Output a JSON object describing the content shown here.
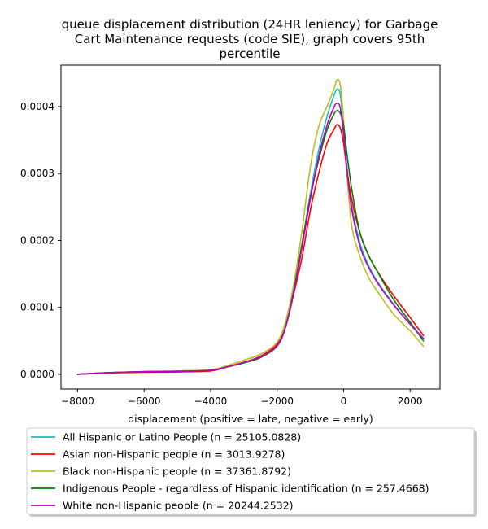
{
  "chart_data": {
    "type": "line",
    "title_lines": [
      "queue displacement distribution (24HR leniency) for Garbage",
      "Cart Maintenance  requests (code SIE), graph covers 95th",
      "percentile"
    ],
    "xlabel": "displacement (positive = late, negative = early)",
    "ylabel": "",
    "xlim": [
      -8500,
      2900
    ],
    "ylim": [
      -2.2e-05,
      0.000462
    ],
    "x_ticks": [
      -8000,
      -6000,
      -4000,
      -2000,
      0,
      2000
    ],
    "x_tick_labels": [
      "−8000",
      "−6000",
      "−4000",
      "−2000",
      "0",
      "2000"
    ],
    "y_ticks": [
      0,
      0.0001,
      0.0002,
      0.0003,
      0.0004
    ],
    "y_tick_labels": [
      "0.0000",
      "0.0001",
      "0.0002",
      "0.0003",
      "0.0004"
    ],
    "grid": false,
    "legend_position": "below",
    "x": [
      -8000,
      -7000,
      -6000,
      -5000,
      -4000,
      -3500,
      -3000,
      -2500,
      -2000,
      -1750,
      -1500,
      -1250,
      -1000,
      -750,
      -500,
      -300,
      -200,
      -100,
      0,
      100,
      250,
      500,
      750,
      1000,
      1500,
      2000,
      2400
    ],
    "series": [
      {
        "name": "All Hispanic or Latino People (n = 25105.0828)",
        "color": "#17becf",
        "values": [
          0,
          2.5e-06,
          4e-06,
          4.5e-06,
          6e-06,
          1.1e-05,
          1.8e-05,
          2.7e-05,
          4.5e-05,
          7.2e-05,
          0.000125,
          0.000195,
          0.00027,
          0.000335,
          0.000385,
          0.000415,
          0.000426,
          0.000418,
          0.00037,
          0.00031,
          0.00025,
          0.000195,
          0.000163,
          0.00014,
          0.000105,
          7.5e-05,
          5.3e-05
        ]
      },
      {
        "name": "Asian non-Hispanic people (n = 3013.9278)",
        "color": "#ff0000",
        "values": [
          0,
          2e-06,
          3e-06,
          3.5e-06,
          5e-06,
          1.1e-05,
          1.8e-05,
          2.7e-05,
          4.5e-05,
          7e-05,
          0.00012,
          0.000175,
          0.000245,
          0.0003,
          0.000345,
          0.000365,
          0.000373,
          0.000368,
          0.000345,
          0.000305,
          0.00026,
          0.00021,
          0.000178,
          0.000155,
          0.000118,
          8.5e-05,
          5.8e-05
        ]
      },
      {
        "name": "Black non-Hispanic people (n = 37361.8792)",
        "color": "#bcbd22",
        "values": [
          0,
          2.5e-06,
          4e-06,
          5e-06,
          7e-06,
          1.3e-05,
          2.1e-05,
          3e-05,
          4.8e-05,
          7.8e-05,
          0.000135,
          0.000215,
          0.00031,
          0.00037,
          0.0004,
          0.000425,
          0.00044,
          0.000432,
          0.00038,
          0.0003,
          0.00022,
          0.000175,
          0.000145,
          0.000125,
          9e-05,
          6.5e-05,
          4.2e-05
        ]
      },
      {
        "name": "Indigenous People - regardless of Hispanic identification (n = 257.4668)",
        "color": "#008000",
        "values": [
          0,
          2.5e-06,
          4e-06,
          4.5e-06,
          6e-06,
          1.1e-05,
          1.7e-05,
          2.5e-05,
          4.2e-05,
          7e-05,
          0.000125,
          0.000195,
          0.000265,
          0.00032,
          0.000365,
          0.000388,
          0.000394,
          0.00039,
          0.000372,
          0.00033,
          0.000275,
          0.00021,
          0.000178,
          0.000155,
          0.000112,
          7.8e-05,
          5e-05
        ]
      },
      {
        "name": "White non-Hispanic people (n = 20244.2532)",
        "color": "#bf00bf",
        "values": [
          0,
          2.5e-06,
          4e-06,
          4.5e-06,
          6e-06,
          1.1e-05,
          1.8e-05,
          2.6e-05,
          4.3e-05,
          7e-05,
          0.000122,
          0.00019,
          0.000262,
          0.000325,
          0.000372,
          0.000398,
          0.000405,
          0.000398,
          0.000358,
          0.000305,
          0.000245,
          0.00019,
          0.00016,
          0.000138,
          0.000104,
          7.5e-05,
          5.4e-05
        ]
      }
    ]
  }
}
